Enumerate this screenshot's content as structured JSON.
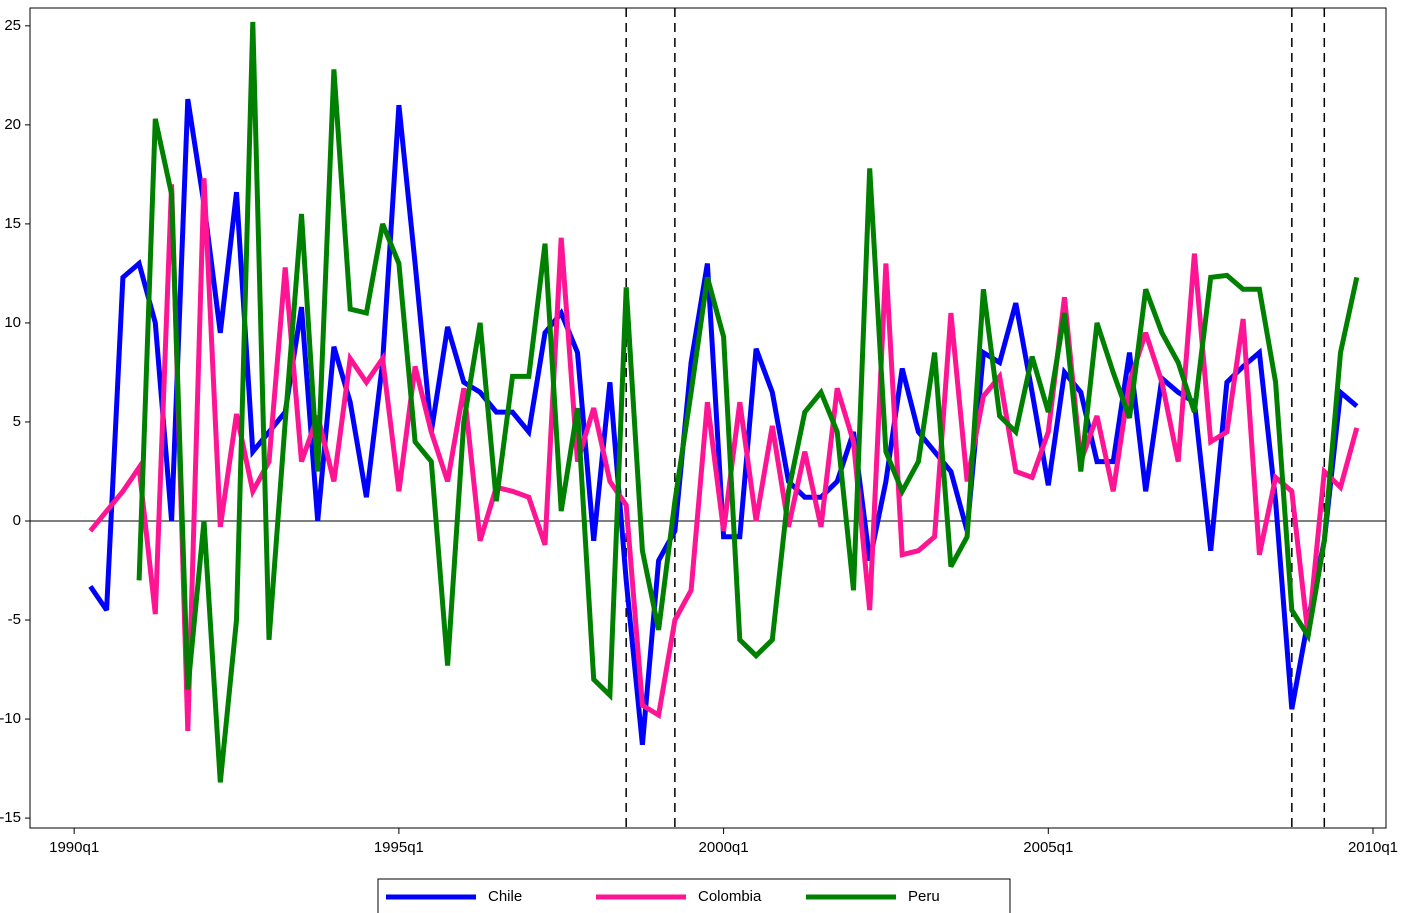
{
  "chart_data": {
    "type": "line",
    "x": [
      1990.25,
      1990.5,
      1990.75,
      1991,
      1991.25,
      1991.5,
      1991.75,
      1992,
      1992.25,
      1992.5,
      1992.75,
      1993,
      1993.25,
      1993.5,
      1993.75,
      1994,
      1994.25,
      1994.5,
      1994.75,
      1995,
      1995.25,
      1995.5,
      1995.75,
      1996,
      1996.25,
      1996.5,
      1996.75,
      1997,
      1997.25,
      1997.5,
      1997.75,
      1998,
      1998.25,
      1998.5,
      1998.75,
      1999,
      1999.25,
      1999.5,
      1999.75,
      2000,
      2000.25,
      2000.5,
      2000.75,
      2001,
      2001.25,
      2001.5,
      2001.75,
      2002,
      2002.25,
      2002.5,
      2002.75,
      2003,
      2003.25,
      2003.5,
      2003.75,
      2004,
      2004.25,
      2004.5,
      2004.75,
      2005,
      2005.25,
      2005.5,
      2005.75,
      2006,
      2006.25,
      2006.5,
      2006.75,
      2007,
      2007.25,
      2007.5,
      2007.75,
      2008,
      2008.25,
      2008.5,
      2008.75,
      2009,
      2009.25,
      2009.5,
      2009.75
    ],
    "series": [
      {
        "name": "Chile",
        "color": "#0000ff",
        "values": [
          -3.3,
          -4.5,
          12.3,
          13,
          10,
          0,
          21.3,
          16,
          9.5,
          16.6,
          3.5,
          4.5,
          5.5,
          10.8,
          0,
          8.8,
          6,
          1.2,
          8,
          21,
          13,
          4.5,
          9.8,
          7,
          6.5,
          5.5,
          5.5,
          4.5,
          9.5,
          10.5,
          8.5,
          -1,
          7,
          -3,
          -11.3,
          -2,
          -0.5,
          8,
          13,
          -0.8,
          -0.8,
          8.7,
          6.5,
          2,
          1.2,
          1.2,
          2,
          4.5,
          -2,
          2,
          7.7,
          4.5,
          3.5,
          2.5,
          -0.5,
          8.5,
          8,
          11,
          6.5,
          1.8,
          7.5,
          6.5,
          3,
          3,
          8.5,
          1.5,
          7.2,
          6.5,
          6,
          -1.5,
          7,
          7.8,
          8.5,
          1,
          -9.5,
          -5,
          -1,
          6.5,
          5.8
        ]
      },
      {
        "name": "Colombia",
        "color": "#ff1493",
        "values": [
          -0.5,
          0.5,
          1.5,
          2.7,
          -4.7,
          17,
          -10.6,
          17.3,
          -0.3,
          5.4,
          1.5,
          3,
          12.8,
          3,
          5.3,
          2,
          8.2,
          7,
          8.2,
          1.5,
          7.8,
          4.5,
          2,
          6.7,
          -1,
          1.7,
          1.5,
          1.2,
          -1.2,
          14.3,
          3,
          5.7,
          2,
          0.8,
          -9.3,
          -9.8,
          -5,
          -3.5,
          6,
          -0.5,
          6,
          0,
          4.8,
          -0.3,
          3.5,
          -0.3,
          6.7,
          4,
          -4.5,
          13,
          -1.7,
          -1.5,
          -0.8,
          10.5,
          2,
          6.3,
          7.3,
          2.5,
          2.2,
          4.5,
          11.3,
          3,
          5.3,
          1.5,
          7,
          9.5,
          7,
          3,
          13.5,
          4,
          4.5,
          10.2,
          -1.7,
          2.2,
          1.5,
          -5.8,
          2.5,
          1.7,
          4.7
        ]
      },
      {
        "name": "Peru",
        "color": "#008000",
        "values": [
          null,
          null,
          null,
          -3,
          20.3,
          16.5,
          -8.5,
          0,
          -13.2,
          -5,
          25.2,
          -6,
          5,
          15.5,
          2.5,
          22.8,
          10.7,
          10.5,
          15,
          13,
          4,
          3,
          -7.3,
          5,
          10,
          1,
          7.3,
          7.3,
          14,
          0.5,
          5.7,
          -8,
          -8.8,
          11.8,
          -1.5,
          -5.5,
          1,
          6.5,
          12.3,
          9.3,
          -6,
          -6.8,
          -6,
          1.5,
          5.5,
          6.5,
          4.5,
          -3.5,
          17.8,
          3.5,
          1.5,
          3,
          8.5,
          -2.3,
          -0.8,
          11.7,
          5.3,
          4.5,
          8.3,
          5.5,
          10.5,
          2.5,
          10,
          7.5,
          5.2,
          11.7,
          9.5,
          8,
          5.5,
          12.3,
          12.4,
          11.7,
          11.7,
          7,
          -4.5,
          -5.8,
          -1,
          8.5,
          12.3
        ]
      }
    ],
    "xlim": [
      1989.32,
      2010.2
    ],
    "xticks": [
      {
        "value": 1990,
        "label": "1990q1"
      },
      {
        "value": 1995,
        "label": "1995q1"
      },
      {
        "value": 2000,
        "label": "2000q1"
      },
      {
        "value": 2005,
        "label": "2005q1"
      },
      {
        "value": 2010,
        "label": "2010q1"
      }
    ],
    "ylim": [
      -15.5,
      25.9
    ],
    "yticks": [
      -15,
      -10,
      -5,
      0,
      5,
      10,
      15,
      20,
      25
    ],
    "hline": 0,
    "vlines": [
      1998.5,
      1999.25,
      2008.75,
      2009.25
    ],
    "legend": "bottom"
  }
}
